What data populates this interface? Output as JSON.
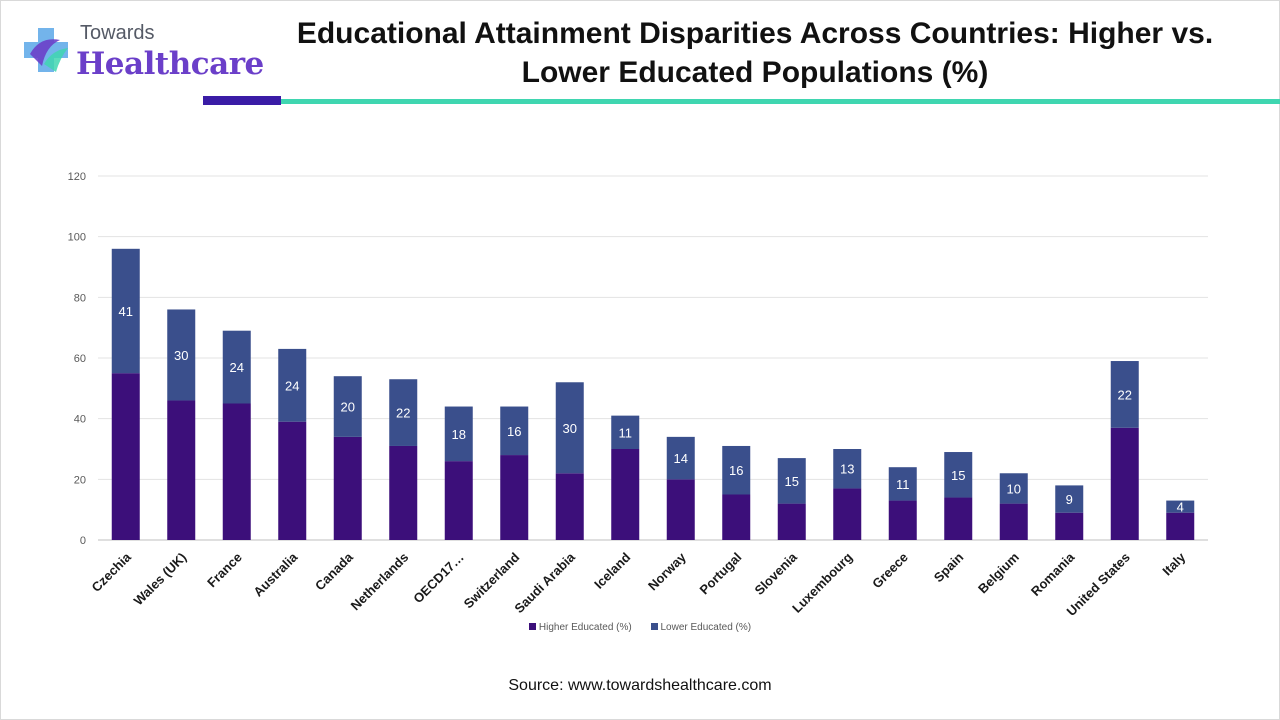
{
  "header": {
    "logo_top": "Towards",
    "logo_main": "Healthcare",
    "title": "Educational Attainment Disparities Across Countries: Higher vs. Lower Educated Populations (%)"
  },
  "colors": {
    "higher": "#3c0f7a",
    "lower": "#3a4f8c",
    "accent_dark": "#3a1ca6",
    "accent_teal": "#3fd6b0",
    "logo_purple": "#6b3fc9"
  },
  "chart_data": {
    "type": "bar",
    "stacked": true,
    "categories": [
      "Czechia",
      "Wales (UK)",
      "France",
      "Australia",
      "Canada",
      "Netherlands",
      "OECD17…",
      "Switzerland",
      "Saudi Arabia",
      "Iceland",
      "Norway",
      "Portugal",
      "Slovenia",
      "Luxembourg",
      "Greece",
      "Spain",
      "Belgium",
      "Romania",
      "United States",
      "Italy"
    ],
    "series": [
      {
        "name": "Higher Educated (%)",
        "values": [
          55,
          46,
          45,
          39,
          34,
          31,
          26,
          28,
          22,
          30,
          20,
          15,
          12,
          17,
          13,
          14,
          12,
          9,
          37,
          9
        ],
        "data_labels": false
      },
      {
        "name": "Lower Educated (%)",
        "values": [
          41,
          30,
          24,
          24,
          20,
          22,
          18,
          16,
          30,
          11,
          14,
          16,
          15,
          13,
          11,
          15,
          10,
          9,
          22,
          4
        ],
        "data_labels": true
      }
    ],
    "ylim": [
      0,
      120
    ],
    "yticks": [
      0,
      20,
      40,
      60,
      80,
      100,
      120
    ],
    "grid": true,
    "legend_position": "bottom"
  },
  "source": "Source: www.towardshealthcare.com"
}
